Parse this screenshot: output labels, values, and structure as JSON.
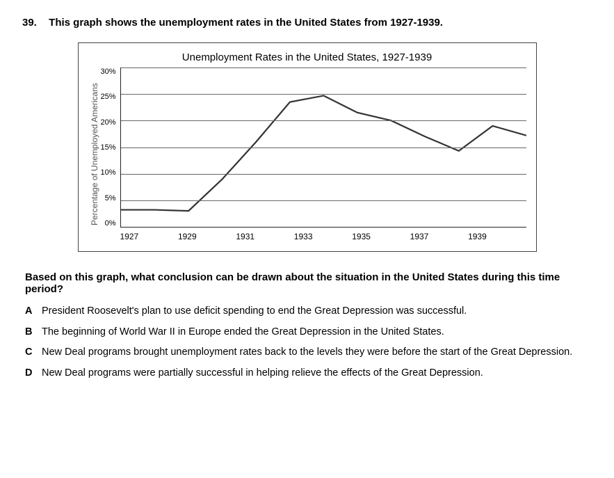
{
  "question": {
    "number": "39.",
    "stem": "This graph shows the unemployment rates in the United States from 1927-1939.",
    "sub": "Based on this graph, what conclusion can be drawn about the situation in the United States during this time period?"
  },
  "chart": {
    "type": "line",
    "title": "Unemployment Rates in the United States, 1927-1939",
    "y_label": "Percentage of Unemployed Americans",
    "ylim": [
      0,
      30
    ],
    "ytick_step": 5,
    "yticks": [
      "30%",
      "25%",
      "20%",
      "15%",
      "10%",
      "5%",
      "0%"
    ],
    "xticks": [
      "1927",
      "1929",
      "1931",
      "1933",
      "1935",
      "1937",
      "1939"
    ],
    "series": {
      "years": [
        1927,
        1928,
        1929,
        1930,
        1931,
        1932,
        1933,
        1934,
        1935,
        1936,
        1937,
        1938,
        1939
      ],
      "values": [
        3.2,
        3.2,
        3.0,
        9.0,
        16.0,
        23.5,
        24.7,
        21.5,
        20.0,
        17.0,
        14.3,
        19.0,
        17.2
      ]
    },
    "line_color": "#333333",
    "line_width": 2.2,
    "grid_color": "#666666",
    "axis_color": "#222222",
    "background_color": "#ffffff",
    "title_fontsize": 15,
    "tick_fontsize": 11
  },
  "choices": [
    {
      "letter": "A",
      "text": "President Roosevelt's plan to use deficit spending to end the Great Depression was successful."
    },
    {
      "letter": "B",
      "text": "The beginning of World War II in Europe ended the Great Depression in the United States."
    },
    {
      "letter": "C",
      "text": "New Deal programs brought unemployment rates back to the levels they were before the start of the Great Depression."
    },
    {
      "letter": "D",
      "text": "New Deal programs were partially successful in helping relieve the effects of the Great Depression."
    }
  ]
}
